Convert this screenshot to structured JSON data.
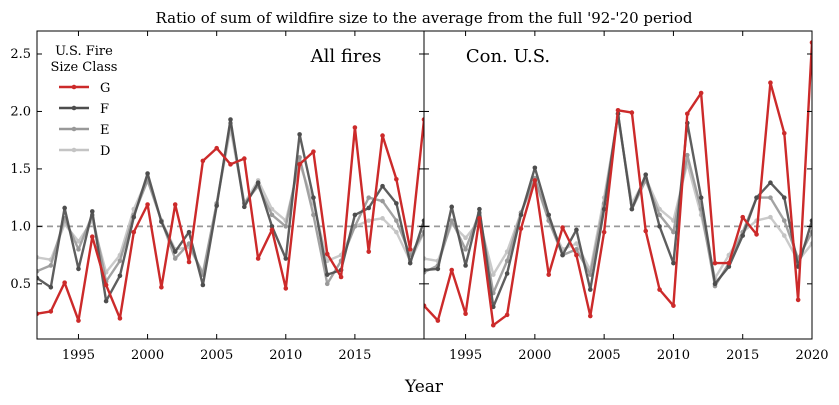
{
  "chart_data": {
    "type": "line",
    "title": "Ratio of sum of wildfire size to the average from the full '92-'20 period",
    "xlabel": "Year",
    "ylabel": "",
    "reference_line": 1.0,
    "ylim": [
      0.02,
      2.7
    ],
    "xlim": [
      1992,
      2020
    ],
    "yticks": [
      "0.5",
      "1.0",
      "1.5",
      "2.0",
      "2.5"
    ],
    "ytick_values": [
      0.5,
      1.0,
      1.5,
      2.0,
      2.5
    ],
    "legend": {
      "title_line1": "U.S. Fire",
      "title_line2": "Size Class",
      "placement": "upper-left"
    },
    "panels": [
      {
        "label": "All fires",
        "xticks": [
          "1995",
          "2000",
          "2005",
          "2010",
          "2015"
        ],
        "xtick_values": [
          1995,
          2000,
          2005,
          2010,
          2015
        ],
        "x": [
          1992,
          1993,
          1994,
          1995,
          1996,
          1997,
          1998,
          1999,
          2000,
          2001,
          2002,
          2003,
          2004,
          2005,
          2006,
          2007,
          2008,
          2009,
          2010,
          2011,
          2012,
          2013,
          2014,
          2015,
          2016,
          2017,
          2018,
          2019,
          2020
        ],
        "series": [
          {
            "name": "D",
            "color": "#c4c4c4",
            "values": [
              0.73,
              0.71,
              1.02,
              0.87,
              1.05,
              0.6,
              0.75,
              1.15,
              1.42,
              1.05,
              0.8,
              0.82,
              0.6,
              1.2,
              1.85,
              1.2,
              1.4,
              1.15,
              1.05,
              1.55,
              1.2,
              0.7,
              0.75,
              1.0,
              1.05,
              1.07,
              0.95,
              0.7,
              0.95
            ]
          },
          {
            "name": "E",
            "color": "#999999",
            "values": [
              0.61,
              0.66,
              1.07,
              0.8,
              1.1,
              0.52,
              0.7,
              1.1,
              1.4,
              1.05,
              0.72,
              0.85,
              0.58,
              1.2,
              1.9,
              1.2,
              1.35,
              1.1,
              1.0,
              1.6,
              1.1,
              0.5,
              0.7,
              1.0,
              1.25,
              1.22,
              1.05,
              0.75,
              0.95
            ]
          },
          {
            "name": "F",
            "color": "#4d4d4d",
            "values": [
              0.55,
              0.47,
              1.16,
              0.63,
              1.13,
              0.35,
              0.57,
              1.08,
              1.46,
              1.04,
              0.78,
              0.95,
              0.49,
              1.18,
              1.93,
              1.17,
              1.38,
              1.0,
              0.72,
              1.8,
              1.25,
              0.58,
              0.62,
              1.1,
              1.16,
              1.35,
              1.2,
              0.68,
              1.05
            ]
          },
          {
            "name": "G",
            "color": "#cc2a2a",
            "values": [
              0.24,
              0.26,
              0.51,
              0.18,
              0.91,
              0.49,
              0.2,
              0.95,
              1.19,
              0.47,
              1.19,
              0.69,
              1.57,
              1.68,
              1.54,
              1.59,
              0.72,
              0.97,
              0.46,
              1.54,
              1.65,
              0.76,
              0.56,
              1.86,
              0.78,
              1.79,
              1.41,
              0.8,
              1.93
            ]
          }
        ]
      },
      {
        "label": "Con. U.S.",
        "xticks": [
          "1995",
          "2000",
          "2005",
          "2010",
          "2015",
          "2020"
        ],
        "xtick_values": [
          1995,
          2000,
          2005,
          2010,
          2015,
          2020
        ],
        "x": [
          1992,
          1993,
          1994,
          1995,
          1996,
          1997,
          1998,
          1999,
          2000,
          2001,
          2002,
          2003,
          2004,
          2005,
          2006,
          2007,
          2008,
          2009,
          2010,
          2011,
          2012,
          2013,
          2014,
          2015,
          2016,
          2017,
          2018,
          2019,
          2020
        ],
        "series": [
          {
            "name": "D",
            "color": "#c4c4c4",
            "values": [
              0.72,
              0.7,
              1.02,
              0.9,
              1.05,
              0.58,
              0.78,
              1.12,
              1.4,
              1.05,
              0.8,
              0.85,
              0.62,
              1.25,
              1.95,
              1.2,
              1.42,
              1.15,
              1.05,
              1.55,
              1.1,
              0.55,
              0.75,
              0.95,
              1.05,
              1.08,
              0.92,
              0.7,
              0.85
            ]
          },
          {
            "name": "E",
            "color": "#999999",
            "values": [
              0.6,
              0.66,
              1.05,
              0.8,
              1.12,
              0.42,
              0.7,
              1.12,
              1.42,
              1.05,
              0.75,
              0.8,
              0.58,
              1.2,
              1.98,
              1.15,
              1.4,
              1.1,
              0.95,
              1.62,
              1.15,
              0.48,
              0.68,
              0.95,
              1.25,
              1.25,
              1.05,
              0.72,
              0.95
            ]
          },
          {
            "name": "F",
            "color": "#4d4d4d",
            "values": [
              0.62,
              0.63,
              1.17,
              0.66,
              1.15,
              0.3,
              0.59,
              1.1,
              1.51,
              1.1,
              0.75,
              0.97,
              0.45,
              1.15,
              1.98,
              1.15,
              1.45,
              1.0,
              0.68,
              1.9,
              1.25,
              0.5,
              0.65,
              0.92,
              1.25,
              1.38,
              1.25,
              0.65,
              1.05
            ]
          },
          {
            "name": "G",
            "color": "#cc2a2a",
            "values": [
              0.31,
              0.18,
              0.62,
              0.24,
              1.07,
              0.14,
              0.23,
              0.98,
              1.4,
              0.58,
              0.99,
              0.75,
              0.22,
              0.95,
              2.01,
              1.99,
              0.96,
              0.45,
              0.31,
              1.98,
              2.16,
              0.68,
              0.68,
              1.08,
              0.93,
              2.25,
              1.81,
              0.36,
              2.6
            ]
          }
        ]
      }
    ]
  }
}
